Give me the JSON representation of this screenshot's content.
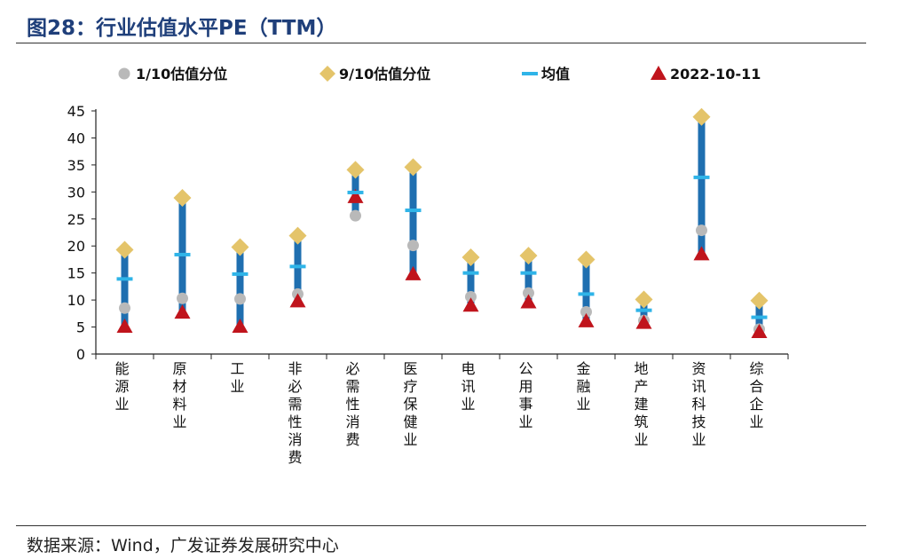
{
  "header": {
    "figure_title": "图28：行业估值水平PE（TTM）"
  },
  "footer": {
    "source": "数据来源：Wind，广发证券发展研究中心"
  },
  "colors": {
    "bar": "#1f6fb0",
    "p10": "#b9b9b9",
    "p90": "#e4c46a",
    "mean": "#2fb4e8",
    "current": "#c0141c",
    "title": "#1f3f7a"
  },
  "chart_data": {
    "type": "range-dot",
    "title": "行业估值水平PE（TTM）",
    "ylim": [
      0,
      45
    ],
    "yticks": [
      0,
      5,
      10,
      15,
      20,
      25,
      30,
      35,
      40,
      45
    ],
    "legend": [
      "1/10估值分位",
      "9/10估值分位",
      "均值",
      "2022-10-11"
    ],
    "categories": [
      "能源业",
      "原材料业",
      "工业",
      "非必需性消费",
      "必需性消费",
      "医疗保健业",
      "电讯业",
      "公用事业",
      "金融业",
      "地产建筑业",
      "资讯科技业",
      "综合企业"
    ],
    "series": [
      {
        "name": "1/10估值分位",
        "values": [
          8.5,
          10.3,
          10.2,
          11.1,
          25.6,
          20.1,
          10.6,
          11.3,
          7.8,
          6.2,
          22.9,
          4.6
        ]
      },
      {
        "name": "9/10估值分位",
        "values": [
          19.3,
          28.9,
          19.8,
          21.9,
          34.1,
          34.6,
          17.9,
          18.2,
          17.5,
          10.1,
          43.9,
          9.9
        ]
      },
      {
        "name": "均值",
        "values": [
          13.9,
          18.4,
          14.8,
          16.2,
          29.9,
          26.6,
          15.0,
          15.0,
          11.1,
          8.1,
          32.7,
          6.8
        ]
      },
      {
        "name": "2022-10-11",
        "values": [
          5.1,
          7.7,
          5.1,
          9.8,
          29.1,
          14.8,
          9.0,
          9.6,
          6.1,
          5.8,
          18.5,
          4.1
        ]
      }
    ]
  }
}
